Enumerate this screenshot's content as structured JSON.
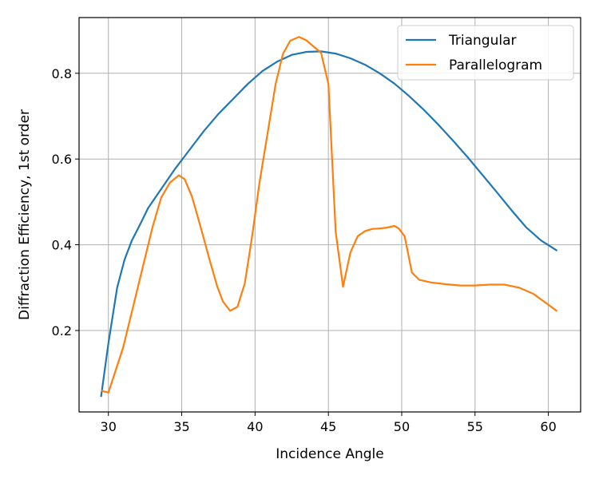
{
  "chart_data": {
    "type": "line",
    "title": "",
    "xlabel": "Incidence Angle",
    "ylabel": "Diffraction Efficiency, 1st order",
    "xlim": [
      28.0,
      62.2
    ],
    "ylim": [
      0.01,
      0.93
    ],
    "xticks": [
      30,
      35,
      40,
      45,
      50,
      55,
      60
    ],
    "yticks": [
      0.2,
      0.4,
      0.6,
      0.8
    ],
    "xtick_labels": [
      "30",
      "35",
      "40",
      "45",
      "50",
      "55",
      "60"
    ],
    "ytick_labels": [
      "0.2",
      "0.4",
      "0.6",
      "0.8"
    ],
    "grid": true,
    "legend_position": "top-right",
    "series": [
      {
        "name": "Triangular",
        "color": "#1f77b4",
        "x": [
          29.5,
          30.0,
          30.6,
          31.1,
          31.6,
          32.2,
          32.7,
          33.3,
          33.8,
          34.5,
          35.5,
          36.5,
          37.5,
          38.5,
          39.5,
          40.5,
          41.5,
          42.5,
          43.5,
          44.5,
          45.5,
          46.5,
          47.5,
          48.5,
          49.5,
          50.5,
          51.5,
          52.5,
          53.5,
          54.5,
          55.5,
          56.5,
          57.5,
          58.5,
          59.5,
          60.6
        ],
        "y": [
          0.045,
          0.17,
          0.3,
          0.365,
          0.41,
          0.45,
          0.485,
          0.515,
          0.54,
          0.575,
          0.62,
          0.665,
          0.705,
          0.74,
          0.775,
          0.805,
          0.827,
          0.843,
          0.85,
          0.851,
          0.846,
          0.835,
          0.82,
          0.8,
          0.776,
          0.747,
          0.715,
          0.68,
          0.643,
          0.604,
          0.563,
          0.522,
          0.48,
          0.44,
          0.41,
          0.386
        ]
      },
      {
        "name": "Parallelogram",
        "color": "#ff7f0e",
        "x": [
          29.5,
          30.0,
          31.0,
          32.0,
          33.0,
          33.6,
          34.2,
          34.8,
          35.2,
          35.7,
          36.3,
          36.9,
          37.4,
          37.8,
          38.3,
          38.8,
          39.3,
          39.8,
          40.3,
          40.9,
          41.4,
          41.9,
          42.4,
          43.0,
          43.5,
          44.0,
          44.5,
          45.0,
          45.5,
          46.0,
          46.5,
          47.0,
          47.5,
          48.0,
          48.5,
          49.0,
          49.5,
          49.8,
          50.2,
          50.7,
          51.2,
          52.0,
          53.0,
          54.0,
          55.0,
          56.0,
          57.0,
          58.0,
          59.0,
          60.6
        ],
        "y": [
          0.06,
          0.055,
          0.16,
          0.3,
          0.44,
          0.51,
          0.545,
          0.562,
          0.553,
          0.512,
          0.44,
          0.365,
          0.305,
          0.268,
          0.246,
          0.255,
          0.31,
          0.42,
          0.545,
          0.67,
          0.775,
          0.845,
          0.876,
          0.885,
          0.877,
          0.862,
          0.848,
          0.775,
          0.43,
          0.302,
          0.382,
          0.42,
          0.432,
          0.437,
          0.438,
          0.44,
          0.444,
          0.438,
          0.42,
          0.335,
          0.318,
          0.312,
          0.308,
          0.305,
          0.305,
          0.307,
          0.307,
          0.3,
          0.285,
          0.245
        ]
      }
    ]
  }
}
